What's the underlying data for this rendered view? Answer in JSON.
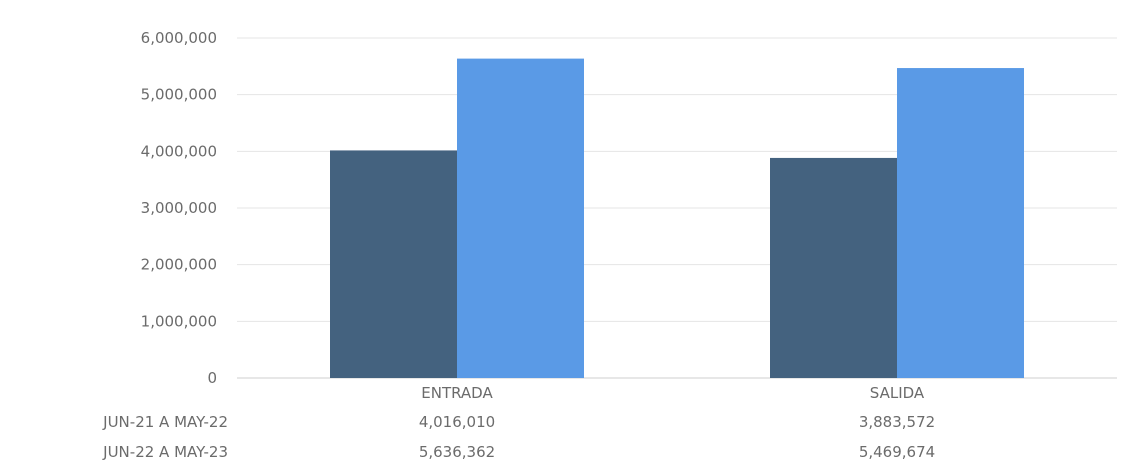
{
  "chart_data": {
    "type": "bar",
    "title": "",
    "xlabel": "",
    "ylabel": "",
    "categories": [
      "ENTRADA",
      "SALIDA"
    ],
    "series": [
      {
        "name": "JUN-21 A MAY-22",
        "values": [
          4016010,
          3883572
        ],
        "color": "#44627f"
      },
      {
        "name": "JUN-22 A MAY-23",
        "values": [
          5636362,
          5469674
        ],
        "color": "#5a9ae6"
      }
    ],
    "ylim": [
      0,
      6000000
    ],
    "yticks": [
      "0",
      "1,000,000",
      "2,000,000",
      "3,000,000",
      "4,000,000",
      "5,000,000",
      "6,000,000"
    ],
    "grid": true,
    "legend": "data-table-below",
    "data_table": {
      "rows": [
        {
          "label": "JUN-21 A MAY-22",
          "values": [
            "4,016,010",
            "3,883,572"
          ]
        },
        {
          "label": "JUN-22 A MAY-23",
          "values": [
            "5,636,362",
            "5,469,674"
          ]
        }
      ]
    }
  }
}
